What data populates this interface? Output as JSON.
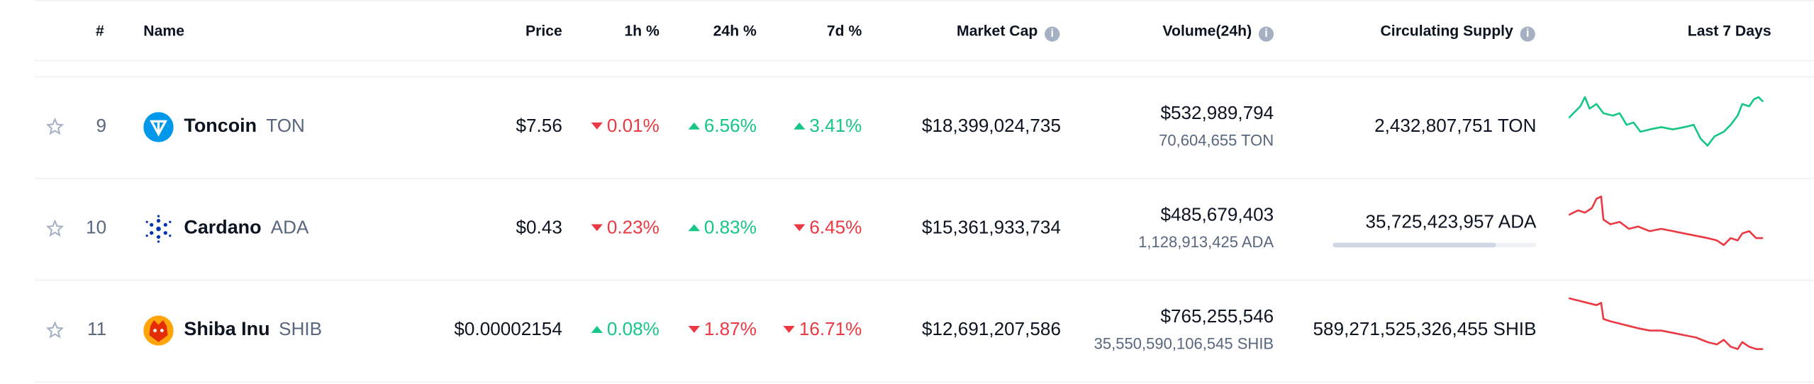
{
  "table": {
    "headers": [
      "#",
      "Name",
      "Price",
      "1h %",
      "24h %",
      "7d %",
      "Market Cap",
      "Volume(24h)",
      "Circulating Supply",
      "Last 7 Days"
    ],
    "rows": [
      {
        "rank": "9",
        "name": "Toncoin",
        "symbol": "TON",
        "price": "$7.56",
        "change_1h": {
          "value": "0.01%",
          "direction": "down"
        },
        "change_24h": {
          "value": "6.56%",
          "direction": "up"
        },
        "change_7d": {
          "value": "3.41%",
          "direction": "up"
        },
        "market_cap": "$18,399,024,735",
        "volume": "$532,989,794",
        "volume_coin": "70,604,655 TON",
        "supply": "2,432,807,751 TON"
      },
      {
        "rank": "10",
        "name": "Cardano",
        "symbol": "ADA",
        "price": "$0.43",
        "change_1h": {
          "value": "0.23%",
          "direction": "down"
        },
        "change_24h": {
          "value": "0.83%",
          "direction": "up"
        },
        "change_7d": {
          "value": "6.45%",
          "direction": "down"
        },
        "market_cap": "$15,361,933,734",
        "volume": "$485,679,403",
        "volume_coin": "1,128,913,425 ADA",
        "supply": "35,725,423,957 ADA"
      },
      {
        "rank": "11",
        "name": "Shiba Inu",
        "symbol": "SHIB",
        "price": "$0.00002154",
        "change_1h": {
          "value": "0.08%",
          "direction": "up"
        },
        "change_24h": {
          "value": "1.87%",
          "direction": "down"
        },
        "change_7d": {
          "value": "16.71%",
          "direction": "down"
        },
        "market_cap": "$12,691,207,586",
        "volume": "$765,255,546",
        "volume_coin": "35,550,590,106,545 SHIB",
        "supply": "589,271,525,326,455 SHIB"
      }
    ]
  }
}
